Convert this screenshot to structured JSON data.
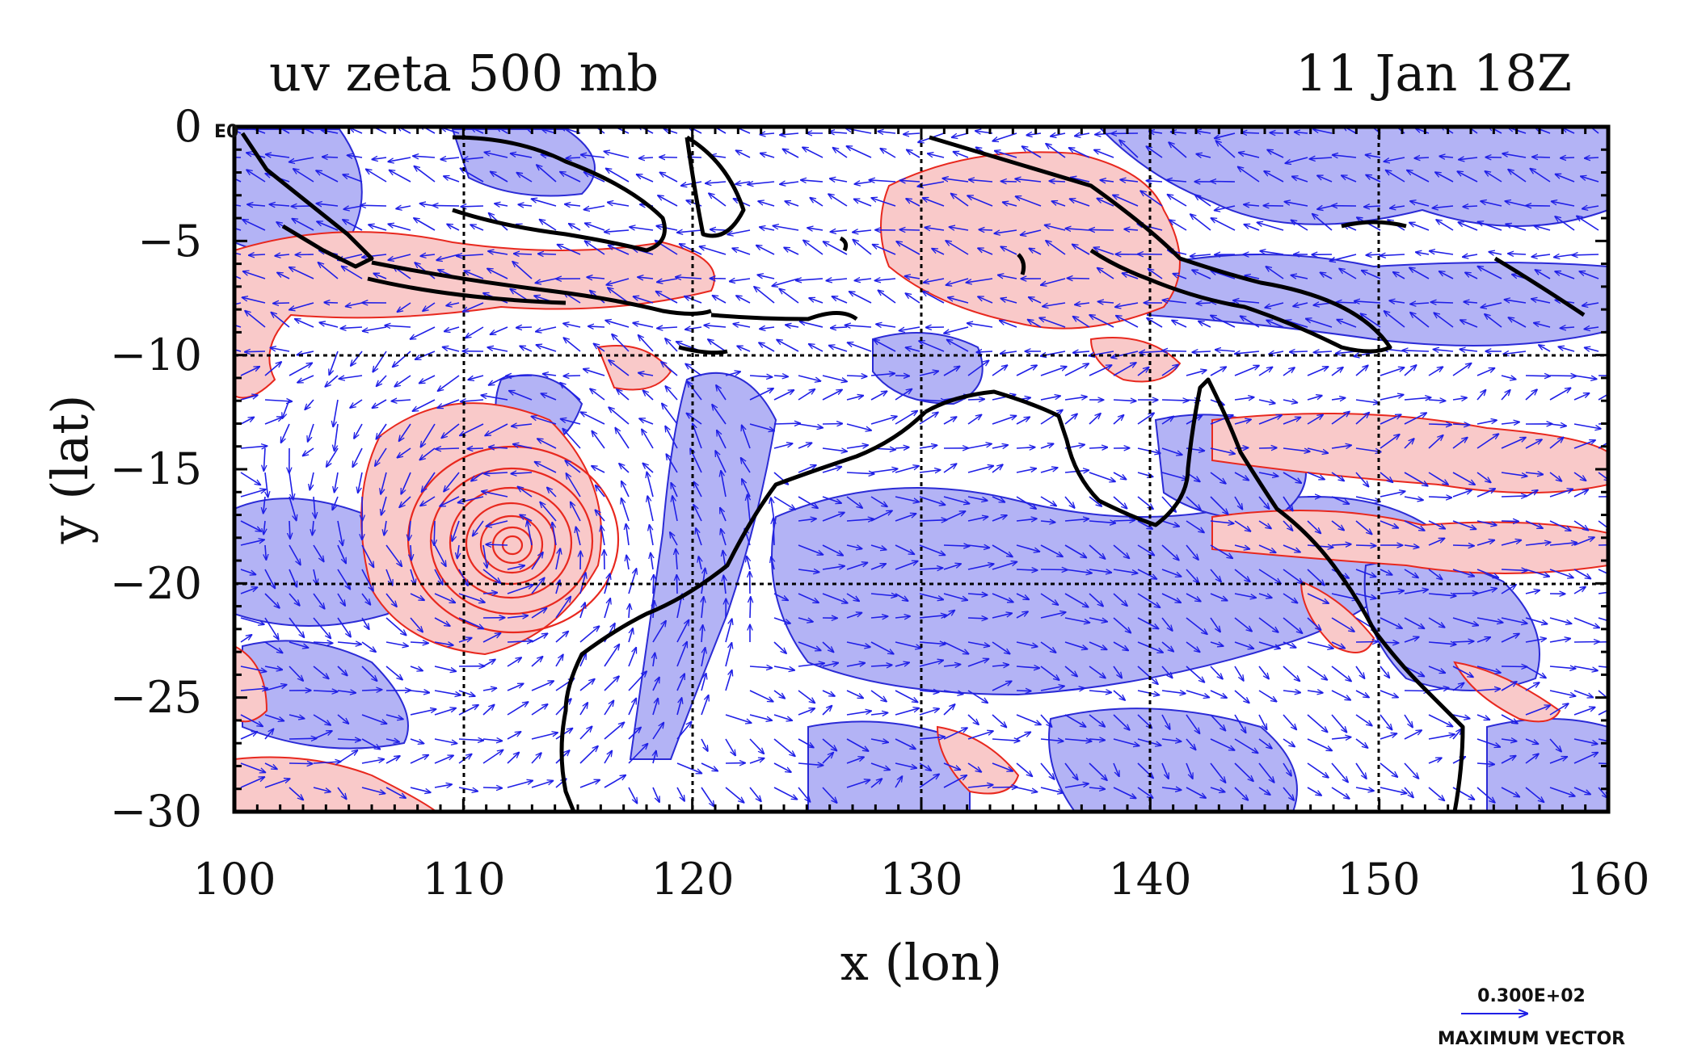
{
  "titles": {
    "left": "uv zeta 500 mb",
    "right": "11 Jan 18Z"
  },
  "axes": {
    "xlabel": "x (lon)",
    "ylabel": "y (lat)",
    "x_ticks": [
      "100",
      "110",
      "120",
      "130",
      "140",
      "150",
      "160"
    ],
    "y_ticks": [
      "0",
      "−5",
      "−10",
      "−15",
      "−20",
      "−25",
      "−30"
    ],
    "corner_note": "E0",
    "xlim": [
      100,
      160
    ],
    "ylim": [
      -30,
      0
    ]
  },
  "vector_key": {
    "value": "0.300E+02",
    "label": "MAXIMUM VECTOR"
  },
  "colors": {
    "positive_vorticity_fill": "#f9c9c9",
    "negative_vorticity_fill": "#b3b3f5",
    "positive_contour": "#e8281e",
    "negative_contour": "#2b2bd6",
    "wind_vectors": "#1f1fe6",
    "coastline": "#000000",
    "grid": "#000000"
  },
  "chart_data": {
    "type": "map",
    "fields": [
      "u",
      "v",
      "zeta"
    ],
    "level": "500 mb",
    "time": "11 Jan 18Z",
    "grid": true,
    "xlim": [
      100,
      160
    ],
    "ylim": [
      -30,
      0
    ],
    "x_ticks": [
      100,
      110,
      120,
      130,
      140,
      150,
      160
    ],
    "y_ticks": [
      0,
      -5,
      -10,
      -15,
      -20,
      -25,
      -30
    ],
    "features": {
      "cyclone_center": {
        "lon": 112,
        "lat": -18.5
      }
    }
  }
}
